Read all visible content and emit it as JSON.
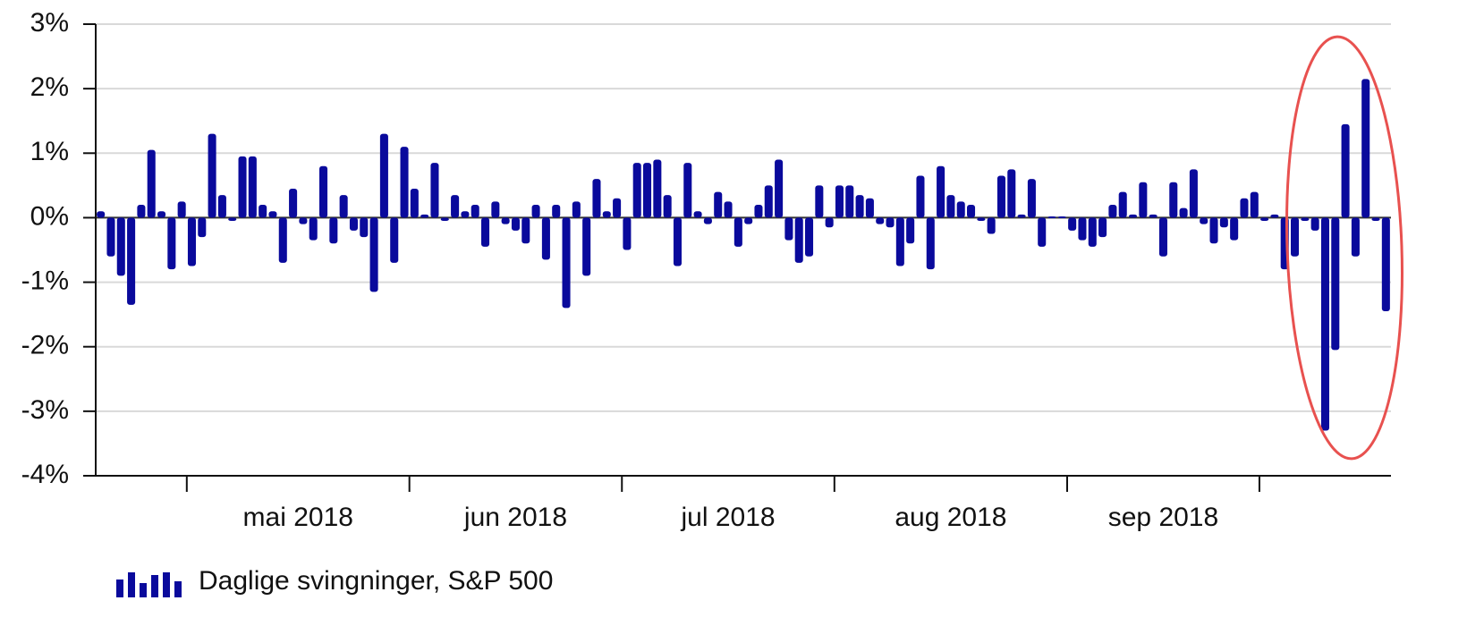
{
  "chart_data": {
    "type": "bar",
    "categories": [
      null,
      null,
      null,
      null,
      null,
      null,
      null,
      null,
      null,
      null,
      null,
      null,
      null,
      null,
      null,
      null,
      null,
      null,
      null,
      null,
      null,
      null,
      null,
      null,
      null,
      null,
      null,
      null,
      null,
      null,
      null,
      null,
      null,
      null,
      null,
      null,
      null,
      null,
      null,
      null,
      null,
      null,
      null,
      null,
      null,
      null,
      null,
      null,
      null,
      null,
      null,
      null,
      null,
      null,
      null,
      null,
      null,
      null,
      null,
      null,
      null,
      null,
      null,
      null,
      null,
      null,
      null,
      null,
      null,
      null,
      null,
      null,
      null,
      null,
      null,
      null,
      null,
      null,
      null,
      null,
      null,
      null,
      null,
      null,
      null,
      null,
      null,
      null,
      null,
      null,
      null,
      null,
      null,
      null,
      null,
      null,
      null,
      null,
      null,
      null,
      null,
      null,
      null,
      null,
      null,
      null,
      null,
      null,
      null,
      null,
      null,
      null,
      null,
      null,
      null,
      null,
      null,
      null,
      null,
      null,
      null,
      null,
      null,
      null,
      null,
      null,
      null,
      null
    ],
    "series": [
      {
        "name": "Daglige svingninger, S&P 500",
        "color": "#0a0a9c",
        "values": [
          0.1,
          -0.6,
          -0.9,
          -1.35,
          0.2,
          1.05,
          0.1,
          -0.8,
          0.25,
          -0.75,
          -0.3,
          1.3,
          0.35,
          -0.05,
          0.95,
          0.95,
          0.2,
          0.1,
          -0.7,
          0.45,
          -0.1,
          -0.35,
          0.8,
          -0.4,
          0.35,
          -0.2,
          -0.3,
          -1.15,
          1.3,
          -0.7,
          1.1,
          0.45,
          0.05,
          0.85,
          -0.05,
          0.35,
          0.1,
          0.2,
          -0.45,
          0.25,
          -0.1,
          -0.2,
          -0.4,
          0.2,
          -0.65,
          0.2,
          -1.4,
          0.25,
          -0.9,
          0.6,
          0.1,
          0.3,
          -0.5,
          0.85,
          0.85,
          0.9,
          0.35,
          -0.75,
          0.85,
          0.1,
          -0.1,
          0.4,
          0.25,
          -0.45,
          -0.1,
          0.2,
          0.5,
          0.9,
          -0.35,
          -0.7,
          -0.6,
          0.5,
          -0.15,
          0.5,
          0.5,
          0.35,
          0.3,
          -0.1,
          -0.15,
          -0.75,
          -0.4,
          0.65,
          -0.8,
          0.8,
          0.35,
          0.25,
          0.2,
          -0.05,
          -0.25,
          0.65,
          0.75,
          0.05,
          0.6,
          -0.45,
          0.02,
          0.02,
          -0.2,
          -0.35,
          -0.45,
          -0.3,
          0.2,
          0.4,
          0.05,
          0.55,
          0.05,
          -0.6,
          0.55,
          0.15,
          0.75,
          -0.1,
          -0.4,
          -0.15,
          -0.35,
          0.3,
          0.4,
          -0.05,
          0.05,
          -0.8,
          -0.6,
          -0.05,
          -0.2,
          -3.3,
          -2.05,
          1.45,
          -0.6,
          2.15,
          -0.05,
          -1.45
        ]
      }
    ],
    "ylim": [
      -4,
      3
    ],
    "yticks": [
      {
        "value": -4,
        "label": "-4%"
      },
      {
        "value": -3,
        "label": "-3%"
      },
      {
        "value": -2,
        "label": "-2%"
      },
      {
        "value": -1,
        "label": "-1%"
      },
      {
        "value": 0,
        "label": "0%"
      },
      {
        "value": 1,
        "label": "1%"
      },
      {
        "value": 2,
        "label": "2%"
      },
      {
        "value": 3,
        "label": "3%"
      }
    ],
    "xticks": [
      8.5,
      30.5,
      51.5,
      72.5,
      95.5,
      114.5
    ],
    "x_labels": [
      {
        "value": 19.5,
        "label": "mai 2018"
      },
      {
        "value": 41,
        "label": "jun 2018"
      },
      {
        "value": 62,
        "label": "jul 2018"
      },
      {
        "value": 84,
        "label": "aug 2018"
      },
      {
        "value": 105,
        "label": "sep 2018"
      }
    ],
    "grid": true
  }
}
